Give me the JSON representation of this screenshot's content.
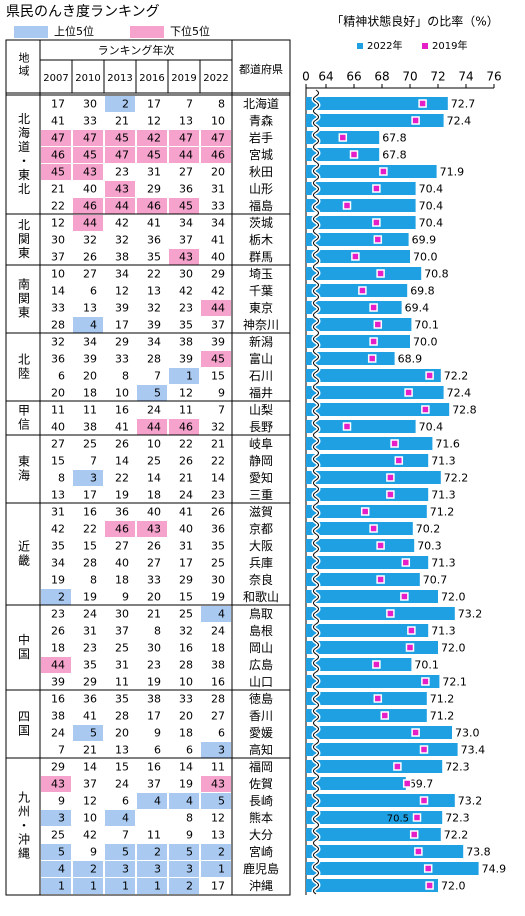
{
  "title": "県民のんき度ランキング",
  "legend": [
    {
      "label": "上位5位",
      "color": "#a9c9f1"
    },
    {
      "label": "下位5位",
      "color": "#f5a3cc"
    }
  ],
  "table": {
    "region_header": "地域",
    "rank_header": "ランキング年次",
    "year_headers": [
      "2007",
      "2010",
      "2013",
      "2016",
      "2019",
      "2022"
    ],
    "prefecture_header": "都道府県",
    "highlight_n": 5,
    "regions": [
      {
        "name": "北海道・東北",
        "rows": [
          [
            17,
            30,
            2,
            17,
            7,
            8
          ],
          [
            41,
            33,
            21,
            12,
            13,
            10
          ],
          [
            47,
            47,
            45,
            42,
            47,
            47
          ],
          [
            46,
            45,
            47,
            45,
            44,
            46
          ],
          [
            45,
            43,
            23,
            31,
            27,
            20
          ],
          [
            21,
            40,
            43,
            29,
            36,
            31
          ],
          [
            22,
            46,
            44,
            46,
            45,
            33
          ]
        ]
      },
      {
        "name": "北関東",
        "rows": [
          [
            12,
            44,
            42,
            41,
            34,
            34
          ],
          [
            30,
            32,
            32,
            36,
            37,
            41
          ],
          [
            37,
            26,
            38,
            35,
            43,
            40
          ]
        ]
      },
      {
        "name": "南関東",
        "rows": [
          [
            10,
            27,
            34,
            22,
            30,
            29
          ],
          [
            14,
            6,
            12,
            13,
            42,
            42
          ],
          [
            33,
            13,
            39,
            32,
            23,
            44
          ],
          [
            28,
            4,
            17,
            39,
            35,
            37
          ]
        ]
      },
      {
        "name": "北陸",
        "rows": [
          [
            32,
            34,
            29,
            34,
            38,
            39
          ],
          [
            36,
            39,
            33,
            28,
            39,
            45
          ],
          [
            6,
            20,
            8,
            7,
            1,
            15
          ],
          [
            20,
            18,
            10,
            5,
            12,
            9
          ]
        ]
      },
      {
        "name": "甲信",
        "rows": [
          [
            11,
            11,
            16,
            24,
            11,
            7
          ],
          [
            40,
            38,
            41,
            44,
            46,
            32
          ]
        ]
      },
      {
        "name": "東海",
        "rows": [
          [
            27,
            25,
            26,
            10,
            22,
            21
          ],
          [
            15,
            7,
            14,
            25,
            26,
            22
          ],
          [
            8,
            3,
            22,
            14,
            21,
            14
          ],
          [
            13,
            17,
            19,
            18,
            24,
            23
          ]
        ]
      },
      {
        "name": "近畿",
        "rows": [
          [
            31,
            16,
            36,
            40,
            41,
            26
          ],
          [
            42,
            22,
            46,
            43,
            40,
            36
          ],
          [
            35,
            15,
            27,
            26,
            31,
            35
          ],
          [
            34,
            28,
            40,
            27,
            17,
            25
          ],
          [
            19,
            8,
            18,
            33,
            29,
            30
          ],
          [
            2,
            19,
            9,
            20,
            15,
            19
          ]
        ]
      },
      {
        "name": "中国",
        "rows": [
          [
            23,
            24,
            30,
            21,
            25,
            4
          ],
          [
            26,
            31,
            37,
            8,
            32,
            24
          ],
          [
            18,
            23,
            25,
            30,
            16,
            18
          ],
          [
            44,
            35,
            31,
            23,
            28,
            38
          ],
          [
            39,
            29,
            11,
            19,
            10,
            16
          ]
        ]
      },
      {
        "name": "四国",
        "rows": [
          [
            16,
            36,
            35,
            38,
            33,
            28
          ],
          [
            38,
            41,
            28,
            17,
            20,
            27
          ],
          [
            24,
            5,
            20,
            9,
            18,
            6
          ],
          [
            7,
            21,
            13,
            6,
            6,
            3
          ]
        ]
      },
      {
        "name": "九州・沖縄",
        "rows": [
          [
            29,
            14,
            15,
            16,
            14,
            11
          ],
          [
            43,
            37,
            24,
            37,
            19,
            43
          ],
          [
            9,
            12,
            6,
            4,
            4,
            5
          ],
          [
            3,
            10,
            4,
            null,
            8,
            12
          ],
          [
            25,
            42,
            7,
            11,
            9,
            13
          ],
          [
            5,
            9,
            5,
            2,
            5,
            2
          ],
          [
            4,
            2,
            3,
            3,
            3,
            1
          ],
          [
            1,
            1,
            1,
            1,
            2,
            17
          ]
        ]
      }
    ]
  },
  "chart_data": {
    "type": "bar",
    "orientation": "horizontal",
    "title": "「精神状態良好」の比率（%）",
    "categories": [
      "北海道",
      "青森",
      "岩手",
      "宮城",
      "秋田",
      "山形",
      "福島",
      "茨城",
      "栃木",
      "群馬",
      "埼玉",
      "千葉",
      "東京",
      "神奈川",
      "新潟",
      "富山",
      "石川",
      "福井",
      "山梨",
      "長野",
      "岐阜",
      "静岡",
      "愛知",
      "三重",
      "滋賀",
      "京都",
      "大阪",
      "兵庫",
      "奈良",
      "和歌山",
      "鳥取",
      "島根",
      "岡山",
      "広島",
      "山口",
      "徳島",
      "香川",
      "愛媛",
      "高知",
      "福岡",
      "佐賀",
      "長崎",
      "熊本",
      "大分",
      "宮崎",
      "鹿児島",
      "沖縄"
    ],
    "series": [
      {
        "name": "2022年",
        "color": "#1ea0e2",
        "marker": "bar",
        "values": [
          72.7,
          72.4,
          67.8,
          67.8,
          71.9,
          70.4,
          70.4,
          70.4,
          69.9,
          70.0,
          70.8,
          69.8,
          69.4,
          70.1,
          70.0,
          68.9,
          72.2,
          72.4,
          72.8,
          70.4,
          71.6,
          71.3,
          72.2,
          71.3,
          71.2,
          70.2,
          70.3,
          71.3,
          70.7,
          72.0,
          73.2,
          71.3,
          72.0,
          70.1,
          72.1,
          71.2,
          71.2,
          73.0,
          73.4,
          72.3,
          69.7,
          73.2,
          72.3,
          72.2,
          73.8,
          74.9,
          72.0
        ],
        "value_labels": [
          "72.7",
          "72.4",
          "67.8",
          "67.8",
          "71.9",
          "70.4",
          "70.4",
          "70.4",
          "69.9",
          "70.0",
          "70.8",
          "69.8",
          "69.4",
          "70.1",
          "70.0",
          "68.9",
          "72.2",
          "72.4",
          "72.8",
          "70.4",
          "71.6",
          "71.3",
          "72.2",
          "71.3",
          "71.2",
          "70.2",
          "70.3",
          "71.3",
          "70.7",
          "72.0",
          "73.2",
          "71.3",
          "72.0",
          "70.1",
          "72.1",
          "71.2",
          "71.2",
          "73.0",
          "73.4",
          "72.3",
          "69.7",
          "73.2",
          "72.3",
          "72.2",
          "73.8",
          "74.9",
          "72.0"
        ]
      },
      {
        "name": "2019年",
        "color": "#e61ec8",
        "marker": "square",
        "values": [
          70.9,
          70.4,
          65.2,
          66.0,
          68.1,
          67.6,
          65.5,
          67.6,
          67.7,
          66.1,
          67.9,
          66.6,
          67.4,
          67.7,
          67.4,
          67.3,
          71.4,
          69.9,
          71.1,
          65.5,
          68.9,
          69.2,
          68.6,
          68.6,
          66.8,
          67.4,
          67.9,
          69.7,
          67.9,
          69.6,
          68.6,
          70.1,
          70.0,
          67.6,
          71.1,
          67.7,
          68.2,
          70.4,
          71.0,
          69.1,
          69.8,
          71.0,
          70.5,
          70.3,
          70.6,
          71.3,
          71.4
        ],
        "value_labels": [
          null,
          null,
          null,
          null,
          null,
          null,
          null,
          null,
          null,
          null,
          null,
          null,
          null,
          null,
          null,
          null,
          null,
          null,
          null,
          null,
          null,
          null,
          null,
          null,
          null,
          null,
          null,
          null,
          null,
          null,
          null,
          null,
          null,
          null,
          null,
          null,
          null,
          null,
          null,
          null,
          null,
          null,
          "70.5",
          null,
          null,
          null,
          null
        ]
      }
    ],
    "xlim": [
      0,
      76
    ],
    "xticks": [
      0,
      64,
      66,
      68,
      70,
      72,
      74,
      76
    ],
    "axis_break": [
      0,
      64
    ],
    "grid": false
  }
}
